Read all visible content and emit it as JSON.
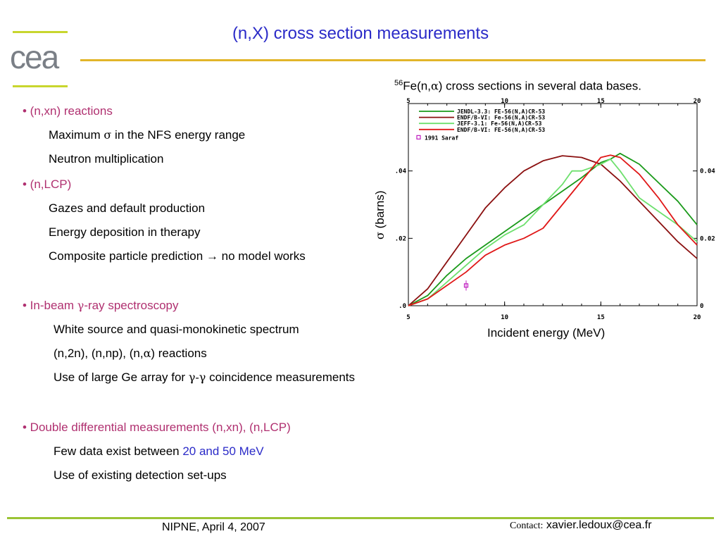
{
  "logo": {
    "text": "cea"
  },
  "title": "(n,X) cross section measurements",
  "bullets": [
    {
      "head": "• (n,xn) reactions",
      "subs": [
        {
          "pre": "Maximum ",
          "greek": "σ",
          "post": " in the NFS energy range"
        },
        {
          "text": "Neutron multiplication"
        }
      ]
    },
    {
      "head": "• (n,LCP)",
      "subs": [
        {
          "text": "Gazes and default production"
        },
        {
          "text": "Energy deposition in therapy"
        },
        {
          "text": "Composite particle prediction → no model works"
        }
      ]
    },
    {
      "head_pre": "• In-beam ",
      "head_greek": "γ",
      "head_post": "-ray spectroscopy",
      "subs": [
        {
          "text": "White source and quasi-monokinetic spectrum"
        },
        {
          "pre": "(n,2n), (n,np), (n,",
          "greek": "α",
          "post": ") reactions"
        },
        {
          "pre": "Use of large Ge array for ",
          "greek": "γ-γ",
          "post": " coincidence measurements"
        }
      ]
    },
    {
      "head": "• Double differential measurements (n,xn), (n,LCP)",
      "subs": [
        {
          "pre": "Few data exist between ",
          "highlight": "20 and 50 MeV"
        },
        {
          "text": "Use of existing detection set-ups"
        }
      ]
    }
  ],
  "chart_caption": {
    "sup": "56",
    "pre": "Fe(n,",
    "greek": "α",
    "post": ") cross sections in several data bases."
  },
  "footer": {
    "left": "NIPNE, April 4, 2007",
    "contact_label": "Contact:",
    "contact_email": "xavier.ledoux@cea.fr"
  },
  "colors": {
    "title": "#2b2bc8",
    "bullet": "#b03070",
    "rule_top": "#e2b52a",
    "rule_bottom": "#9bc434",
    "logo_bar": "#c8d62e"
  },
  "chart_data": {
    "type": "line",
    "xlabel": "Incident energy (MeV)",
    "ylabel_greek": "σ",
    "ylabel": "(barns)",
    "xlim": [
      5,
      20
    ],
    "ylim": [
      0,
      0.06
    ],
    "xticks": [
      5,
      10,
      15,
      20
    ],
    "xtick_labels": [
      "5",
      "10",
      "15",
      "20"
    ],
    "yticks": [
      0,
      0.02,
      0.04
    ],
    "ytick_labels": [
      ".0",
      ".02",
      ".04"
    ],
    "ytick_labels_right": [
      "0",
      "0.02",
      "0.04"
    ],
    "series": [
      {
        "name": "JENDL-3.3: FE-56(N,A)CR-53",
        "color": "#1a9a1a",
        "x": [
          5,
          6,
          7,
          8,
          9,
          10,
          11,
          12,
          13,
          14,
          15,
          15.5,
          16,
          17,
          18,
          19,
          20
        ],
        "y": [
          0,
          0.003,
          0.009,
          0.014,
          0.018,
          0.022,
          0.026,
          0.03,
          0.034,
          0.038,
          0.0425,
          0.0435,
          0.0452,
          0.042,
          0.0365,
          0.031,
          0.024
        ]
      },
      {
        "name": "ENDF/B-VI: Fe-56(N,A)CR-53",
        "color": "#8b1010",
        "x": [
          5,
          6,
          7,
          8,
          9,
          10,
          11,
          12,
          13,
          14,
          15,
          16,
          17,
          18,
          19,
          20
        ],
        "y": [
          0,
          0.005,
          0.013,
          0.021,
          0.029,
          0.035,
          0.04,
          0.043,
          0.0445,
          0.044,
          0.042,
          0.037,
          0.031,
          0.025,
          0.019,
          0.014
        ]
      },
      {
        "name": "JEFF-3.1: Fe-56(N,A)CR-53",
        "color": "#6ee06e",
        "x": [
          5,
          6,
          7,
          8,
          9,
          10,
          11,
          12,
          13,
          13.5,
          14,
          15,
          15.5,
          16,
          17,
          18,
          19,
          20
        ],
        "y": [
          0,
          0.002,
          0.007,
          0.012,
          0.017,
          0.021,
          0.024,
          0.03,
          0.036,
          0.04,
          0.04,
          0.042,
          0.0435,
          0.04,
          0.032,
          0.028,
          0.024,
          0.019
        ]
      },
      {
        "name": "ENDF/B-VI: FE-56(N,A)CR-53",
        "color": "#e01818",
        "x": [
          5,
          6,
          7,
          8,
          9,
          10,
          11,
          12,
          13,
          14,
          15,
          15.5,
          16,
          17,
          18,
          19,
          20
        ],
        "y": [
          0,
          0.002,
          0.006,
          0.01,
          0.015,
          0.018,
          0.02,
          0.023,
          0.03,
          0.037,
          0.044,
          0.0447,
          0.044,
          0.039,
          0.032,
          0.024,
          0.018
        ]
      }
    ],
    "points": [
      {
        "name": "1991 Saraf",
        "color": "#c020c0",
        "x": [
          8
        ],
        "y": [
          0.006
        ],
        "yerr": [
          0.0015
        ]
      }
    ]
  }
}
